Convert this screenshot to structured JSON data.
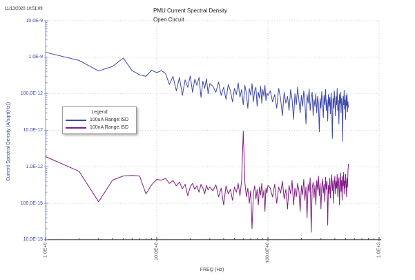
{
  "timestamp": "11/13/2020 10:51:09",
  "chart_data": {
    "type": "line",
    "title": "PMU Current Spectral Density",
    "subtitle": "Open Circuit",
    "xlabel": "FREQ (Hz)",
    "ylabel": "Current Spectral Density (A/sqrt(Hz))",
    "x_scale": "log",
    "y_scale": "log",
    "xlim": [
      1,
      1000
    ],
    "ylim": [
      1e-14,
      1e-08
    ],
    "grid": "dotted lines at decade boundaries",
    "x_ticks": [
      {
        "hz": 1,
        "label": "1.0E+0"
      },
      {
        "hz": 10,
        "label": "10.0E+0"
      },
      {
        "hz": 100,
        "label": "100.0E+0"
      },
      {
        "hz": 1000,
        "label": "1.0E+3"
      }
    ],
    "y_ticks": [
      {
        "value": 1e-08,
        "label": "10.0E-9"
      },
      {
        "value": 1e-09,
        "label": "1.0E-9"
      },
      {
        "value": 1e-10,
        "label": "100.0E-12"
      },
      {
        "value": 1e-11,
        "label": "10.0E-12"
      },
      {
        "value": 1e-12,
        "label": "1.0E-12"
      },
      {
        "value": 1e-13,
        "label": "100.0E-15"
      },
      {
        "value": 1e-14,
        "label": "10.0E-15"
      }
    ],
    "legend": {
      "title": "Legend",
      "position": "left-middle",
      "items": [
        {
          "label": "100uA Range:ISD",
          "color": "#3C46A8"
        },
        {
          "label": "100nA Range:ISD",
          "color": "#821C86"
        }
      ]
    },
    "freqs_hz": [
      1,
      2,
      3,
      4,
      5,
      6,
      7,
      8,
      9,
      10,
      11,
      12,
      13,
      14,
      15,
      16,
      17,
      18,
      19,
      20,
      21,
      22,
      23,
      24,
      25,
      26,
      27,
      28,
      29,
      30,
      32,
      34,
      36,
      38,
      40,
      42,
      44,
      46,
      48,
      50,
      52,
      54,
      56,
      58,
      60,
      62,
      64,
      66,
      68,
      70,
      72,
      74,
      76,
      78,
      80,
      82,
      84,
      86,
      88,
      90,
      92,
      94,
      96,
      98,
      100,
      105,
      110,
      115,
      120,
      125,
      130,
      135,
      140,
      145,
      150,
      155,
      160,
      165,
      170,
      175,
      180,
      185,
      190,
      195,
      200,
      205,
      210,
      215,
      220,
      225,
      230,
      235,
      240,
      245,
      250,
      255,
      260,
      265,
      270,
      275,
      280,
      285,
      290,
      295,
      300,
      305,
      310,
      315,
      320,
      325,
      330,
      335,
      340,
      345,
      350,
      355,
      360,
      365,
      370,
      375,
      380,
      385,
      390,
      395,
      400,
      405,
      410,
      415,
      420,
      425,
      430,
      435,
      440,
      445,
      450,
      455,
      460,
      465,
      470,
      475,
      480,
      485,
      490,
      495,
      500,
      505,
      510,
      515,
      520,
      525,
      530
    ],
    "series": [
      {
        "name": "100uA Range:ISD",
        "color": "#3C46A8",
        "unit": "pA/sqrt(Hz)",
        "unit_scale": 1e-12,
        "values": [
          1360,
          820,
          420,
          560,
          950,
          430,
          330,
          300,
          440,
          380,
          430,
          360,
          180,
          300,
          120,
          280,
          90,
          240,
          150,
          310,
          110,
          250,
          170,
          280,
          80,
          220,
          140,
          260,
          100,
          190,
          160,
          110,
          210,
          90,
          150,
          70,
          180,
          120,
          60,
          140,
          95,
          200,
          80,
          130,
          50,
          170,
          100,
          40,
          140,
          90,
          190,
          60,
          120,
          150,
          45,
          110,
          75,
          160,
          55,
          130,
          85,
          170,
          65,
          105,
          90,
          120,
          60,
          95,
          40,
          140,
          75,
          25,
          110,
          55,
          85,
          35,
          130,
          70,
          20,
          100,
          50,
          150,
          65,
          30,
          90,
          45,
          120,
          60,
          15,
          95,
          55,
          135,
          35,
          80,
          110,
          25,
          70,
          45,
          100,
          30,
          85,
          55,
          9,
          75,
          40,
          115,
          60,
          22,
          90,
          50,
          130,
          35,
          70,
          18,
          95,
          45,
          80,
          28,
          105,
          55,
          6,
          75,
          40,
          120,
          60,
          25,
          85,
          50,
          140,
          35,
          65,
          15,
          95,
          55,
          110,
          30,
          75,
          45,
          5,
          85,
          50,
          125,
          38,
          68,
          20,
          90,
          48,
          100,
          32,
          60,
          42
        ]
      },
      {
        "name": "100nA Range:ISD",
        "color": "#821C86",
        "unit": "fA/sqrt(Hz)",
        "unit_scale": 1e-15,
        "values": [
          1900,
          750,
          110,
          430,
          560,
          580,
          560,
          180,
          320,
          450,
          430,
          480,
          350,
          420,
          300,
          380,
          250,
          330,
          160,
          280,
          350,
          240,
          300,
          200,
          330,
          260,
          180,
          310,
          230,
          280,
          220,
          320,
          150,
          260,
          90,
          300,
          180,
          240,
          120,
          280,
          200,
          350,
          160,
          420,
          9500,
          380,
          150,
          260,
          100,
          220,
          20,
          180,
          300,
          130,
          240,
          90,
          280,
          170,
          350,
          140,
          230,
          60,
          260,
          190,
          310,
          260,
          150,
          330,
          100,
          280,
          190,
          400,
          130,
          240,
          70,
          310,
          180,
          420,
          90,
          260,
          150,
          350,
          220,
          60,
          300,
          170,
          450,
          120,
          280,
          40,
          330,
          200,
          500,
          16,
          260,
          380,
          140,
          310,
          90,
          420,
          230,
          550,
          160,
          350,
          70,
          280,
          460,
          190,
          330,
          110,
          520,
          240,
          400,
          25,
          310,
          180,
          480,
          140,
          360,
          600,
          220,
          420,
          100,
          330,
          550,
          180,
          400,
          260,
          620,
          150,
          380,
          500,
          90,
          320,
          680,
          210,
          430,
          120,
          560,
          300,
          700,
          180,
          410,
          260,
          620,
          350,
          150,
          480,
          280,
          750,
          1200
        ]
      }
    ]
  }
}
